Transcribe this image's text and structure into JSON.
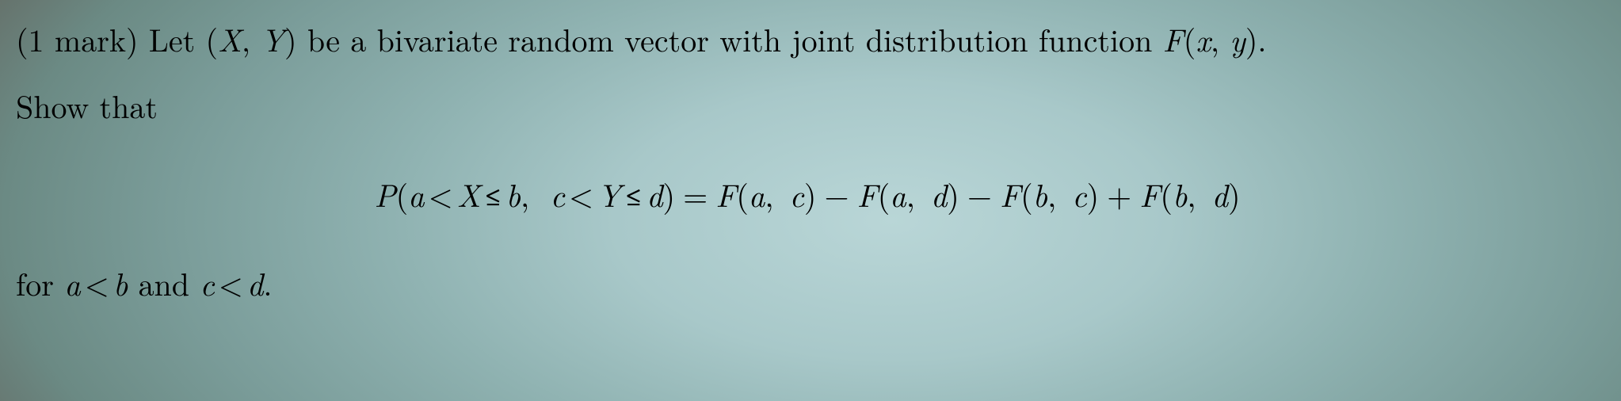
{
  "problem": {
    "marks_label": "(1 mark)",
    "lead_in": "Let",
    "vector": "(X, Y)",
    "be_text": "be a bivariate random vector with joint distribution function",
    "dist_fn": "F(x, y)",
    "period": ".",
    "show_that": "Show that",
    "equation": {
      "P": "P",
      "lhs_open": "(",
      "a": "a",
      "lt1": "<",
      "X": "X",
      "le1": "≤",
      "b": "b",
      "sep": ",",
      "c": "c",
      "lt2": "<",
      "Y": "Y",
      "le2": "≤",
      "d": "d",
      "lhs_close": ")",
      "eq": "=",
      "F": "F",
      "t1": "(a, c)",
      "minus1": "−",
      "t2": "(a, d)",
      "minus2": "−",
      "t3": "(b, c)",
      "plus": "+",
      "t4": "(b, d)"
    },
    "for_text": "for",
    "cond1_a": "a",
    "cond1_lt": "<",
    "cond1_b": "b",
    "and_text": "and",
    "cond2_c": "c",
    "cond2_lt": "<",
    "cond2_d": "d",
    "final_period": "."
  },
  "style": {
    "font_size_pt": 40,
    "text_color": "#000000",
    "bg_center": "#b9d6d7",
    "bg_edge": "#605a53"
  }
}
